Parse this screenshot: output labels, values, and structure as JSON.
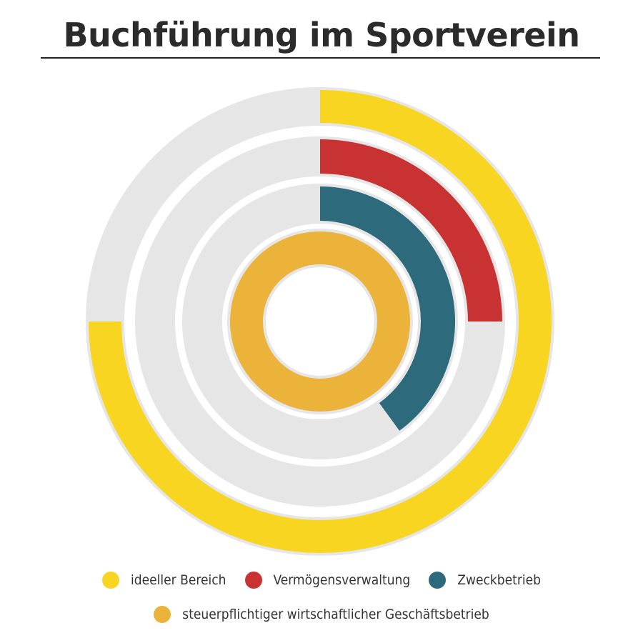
{
  "title": "Buchführung im Sportverein",
  "chart_data": {
    "type": "radial-bar",
    "title": "Buchführung im Sportverein",
    "track_color": "#e6e6e6",
    "max": 100,
    "series": [
      {
        "name": "ideeller Bereich",
        "value": 75,
        "color": "#f7d520"
      },
      {
        "name": "Vermögensverwaltung",
        "value": 25,
        "color": "#c93232"
      },
      {
        "name": "Zweckbetrieb",
        "value": 40,
        "color": "#2d6a7b"
      },
      {
        "name": "steuerpflichtiger wirtschaftlicher Geschäftsbetrieb",
        "value": 100,
        "color": "#ecb33a"
      }
    ],
    "legend_position": "bottom"
  },
  "legend": {
    "items": [
      {
        "label": "ideeller Bereich",
        "color": "#f7d520"
      },
      {
        "label": "Vermögensverwaltung",
        "color": "#c93232"
      },
      {
        "label": "Zweckbetrieb",
        "color": "#2d6a7b"
      },
      {
        "label": "steuerpflichtiger wirtschaftlicher Geschäftsbetrieb",
        "color": "#ecb33a"
      }
    ]
  }
}
